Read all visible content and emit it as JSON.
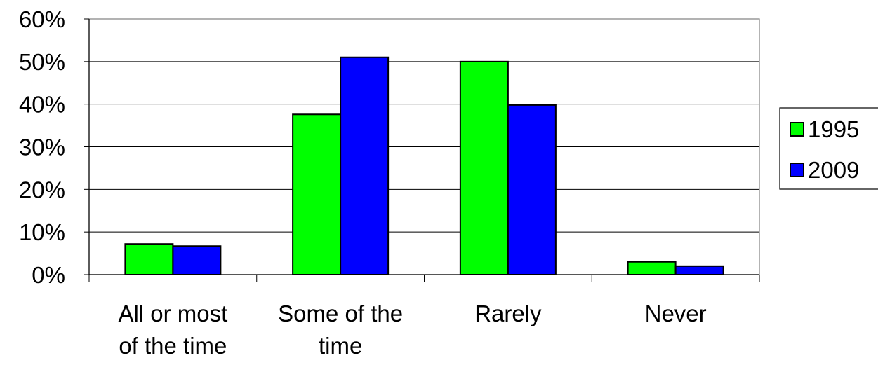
{
  "chart_data": {
    "type": "bar",
    "title": "",
    "xlabel": "",
    "ylabel": "",
    "categories": [
      [
        "All or most",
        "of the time"
      ],
      [
        "Some of the",
        "time"
      ],
      [
        "Rarely"
      ],
      [
        "Never"
      ]
    ],
    "series": [
      {
        "name": "1995",
        "color": "#00FF00",
        "values": [
          0.072,
          0.376,
          0.5,
          0.03
        ]
      },
      {
        "name": "2009",
        "color": "#0000FF",
        "values": [
          0.067,
          0.51,
          0.398,
          0.02
        ]
      }
    ],
    "ylim": [
      0,
      0.6
    ],
    "yticks": [
      0,
      0.1,
      0.2,
      0.3,
      0.4,
      0.5,
      0.6
    ],
    "ytick_labels": [
      "0%",
      "10%",
      "20%",
      "30%",
      "40%",
      "50%",
      "60%"
    ],
    "grid": true,
    "legend_position": "right"
  }
}
